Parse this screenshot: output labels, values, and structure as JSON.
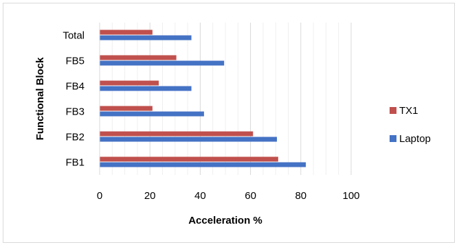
{
  "chart_data": {
    "type": "bar",
    "orientation": "horizontal",
    "categories": [
      "FB1",
      "FB2",
      "FB3",
      "FB4",
      "FB5",
      "Total"
    ],
    "series": [
      {
        "name": "Laptop",
        "color": "#4472C4",
        "values": [
          82,
          70.5,
          41.5,
          36.5,
          49.5,
          36.5
        ]
      },
      {
        "name": "TX1",
        "color": "#C0504D",
        "values": [
          71,
          61,
          21,
          23.5,
          30.5,
          21
        ]
      }
    ],
    "title": "",
    "xlabel": "Acceleration %",
    "ylabel": "Functional Block",
    "xlim": [
      0,
      100
    ],
    "xticks": [
      "0",
      "20",
      "40",
      "60",
      "80",
      "100"
    ],
    "grid": true,
    "legend": {
      "placement": "right",
      "entries": [
        "TX1",
        "Laptop"
      ]
    }
  }
}
